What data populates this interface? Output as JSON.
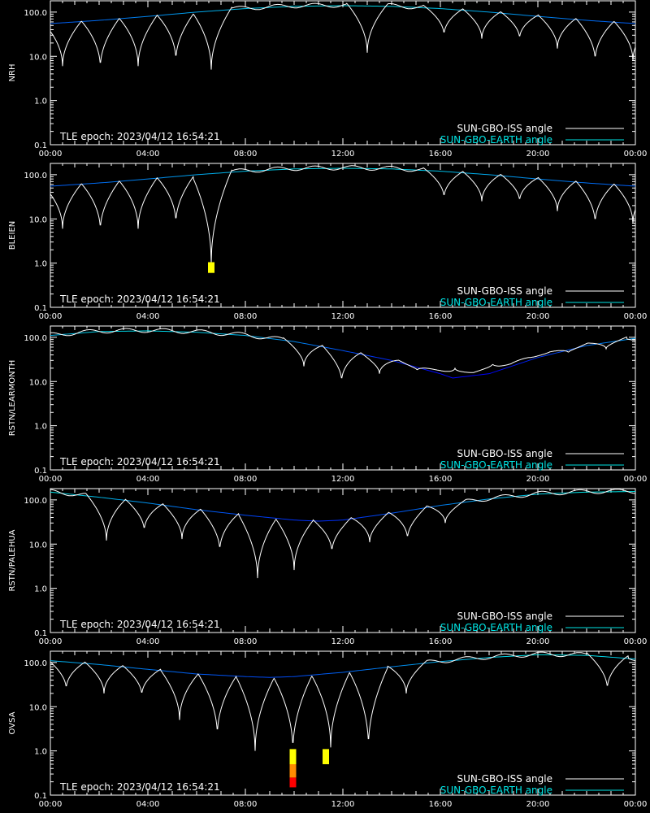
{
  "x_ticks": [
    "00:00",
    "04:00",
    "08:00",
    "12:00",
    "16:00",
    "20:00",
    "00:00"
  ],
  "y_ticks": [
    "100.0",
    "10.0",
    "1.0",
    "0.1"
  ],
  "epoch_label": "TLE epoch: 2023/04/12 16:54:21",
  "legend": [
    {
      "label": "SUN-GBO-ISS angle",
      "color": "#ffffff"
    },
    {
      "label": "SUN-GBO-EARTH angle",
      "color": "#00e5e5"
    }
  ],
  "colors": {
    "background": "#000000",
    "axis": "#ffffff",
    "iss_curve": "#ffffff",
    "earth_curve_low": "#0000ff",
    "earth_curve_high": "#00e5e5",
    "marker_yellow": "#ffff00",
    "marker_orange": "#ff8c00",
    "marker_red": "#ff0000"
  },
  "chart_data": [
    {
      "type": "line",
      "station": "NRH",
      "ylabel": "NRH",
      "yscale": "log",
      "ylim": [
        0.1,
        180
      ],
      "xlim_hours": [
        0,
        24
      ],
      "earth_angle": {
        "x_hours": [
          0,
          2,
          4,
          6,
          8,
          10,
          12,
          14,
          16,
          18,
          20,
          22,
          24
        ],
        "y": [
          55,
          65,
          80,
          100,
          120,
          135,
          140,
          135,
          120,
          100,
          80,
          65,
          55
        ]
      },
      "iss_orbit_period_hours": 1.55,
      "iss_first_minimum_hour": 0.5,
      "iss_minima_hours": [
        0.5,
        2.05,
        3.6,
        5.15,
        6.6,
        13.0,
        16.15,
        17.7,
        19.25,
        20.8,
        22.35,
        23.9
      ],
      "iss_minima_values": [
        6,
        5.5,
        6,
        8,
        5,
        12,
        30,
        25,
        25,
        15,
        8,
        8
      ],
      "markers": []
    },
    {
      "type": "line",
      "station": "BLEIEN",
      "ylabel": "BLEIEN",
      "yscale": "log",
      "ylim": [
        0.1,
        180
      ],
      "xlim_hours": [
        0,
        24
      ],
      "earth_angle": {
        "x_hours": [
          0,
          2,
          4,
          6,
          8,
          10,
          12,
          14,
          16,
          18,
          20,
          22,
          24
        ],
        "y": [
          55,
          65,
          80,
          100,
          120,
          135,
          140,
          135,
          120,
          100,
          80,
          65,
          55
        ]
      },
      "iss_orbit_period_hours": 1.55,
      "iss_first_minimum_hour": 0.5,
      "iss_minima_hours": [
        0.5,
        2.05,
        3.6,
        5.15,
        6.6,
        16.15,
        17.7,
        19.25,
        20.8,
        22.35,
        23.9
      ],
      "iss_minima_values": [
        6,
        5.5,
        6,
        8,
        1.0,
        30,
        25,
        25,
        15,
        8,
        8
      ],
      "markers": [
        {
          "x_hours": 6.6,
          "y_bottom": 0.6,
          "y_top": 1.05,
          "color": "#ffff00"
        }
      ]
    },
    {
      "type": "line",
      "station": "RSTN/LEARMONTH",
      "ylabel": "RSTN/LEARMONTH",
      "yscale": "log",
      "ylim": [
        0.1,
        180
      ],
      "xlim_hours": [
        0,
        24
      ],
      "earth_angle": {
        "x_hours": [
          0,
          2,
          4,
          6,
          8,
          10,
          12,
          14,
          16,
          16.5,
          18,
          20,
          22,
          24
        ],
        "y": [
          110,
          135,
          140,
          130,
          110,
          80,
          50,
          30,
          15,
          12,
          15,
          35,
          65,
          95
        ]
      },
      "iss_orbit_period_hours": 1.55,
      "iss_first_minimum_hour": 0.5,
      "iss_minima_hours": [
        10.4,
        11.95,
        13.5,
        15.05,
        16.6,
        18.15,
        19.7,
        21.25,
        22.8
      ],
      "iss_minima_values": [
        22,
        10,
        15,
        18,
        20,
        25,
        35,
        45,
        55
      ],
      "markers": []
    },
    {
      "type": "line",
      "station": "RSTN/PALEHUA",
      "ylabel": "RSTN/PALEHUA",
      "yscale": "log",
      "ylim": [
        0.1,
        180
      ],
      "xlim_hours": [
        0,
        24
      ],
      "earth_angle": {
        "x_hours": [
          0,
          2,
          4,
          6,
          8,
          10,
          11,
          12,
          14,
          16,
          18,
          20,
          22,
          24
        ],
        "y": [
          150,
          115,
          85,
          60,
          45,
          35,
          33,
          35,
          50,
          75,
          105,
          135,
          150,
          155
        ]
      },
      "iss_orbit_period_hours": 1.55,
      "iss_first_minimum_hour": 0.5,
      "iss_minima_hours": [
        2.3,
        3.85,
        5.4,
        6.95,
        8.5,
        10.0,
        11.55,
        13.1,
        14.65,
        16.2
      ],
      "iss_minima_values": [
        12,
        20,
        13,
        7,
        1.7,
        2.6,
        6.5,
        11,
        13,
        30
      ],
      "markers": []
    },
    {
      "type": "line",
      "station": "OVSA",
      "ylabel": "OVSA",
      "yscale": "log",
      "ylim": [
        0.1,
        180
      ],
      "xlim_hours": [
        0,
        24
      ],
      "earth_angle": {
        "x_hours": [
          0,
          2,
          4,
          6,
          8,
          9,
          10,
          12,
          14,
          16,
          18,
          20,
          22,
          24
        ],
        "y": [
          110,
          90,
          70,
          55,
          48,
          46,
          48,
          60,
          80,
          105,
          130,
          150,
          145,
          120
        ]
      },
      "iss_orbit_period_hours": 1.55,
      "iss_first_minimum_hour": 0.5,
      "iss_minima_hours": [
        0.65,
        2.2,
        3.75,
        5.3,
        6.85,
        8.4,
        9.95,
        11.5,
        13.05,
        14.6,
        22.85
      ],
      "iss_minima_values": [
        25,
        20,
        18,
        5,
        2.2,
        1.0,
        1.0,
        1.2,
        1.2,
        20,
        25
      ],
      "markers": [
        {
          "x_hours": 9.95,
          "y_bottom": 0.15,
          "y_top": 0.25,
          "color": "#ff0000"
        },
        {
          "x_hours": 9.95,
          "y_bottom": 0.25,
          "y_top": 0.5,
          "color": "#ff8c00"
        },
        {
          "x_hours": 9.95,
          "y_bottom": 0.5,
          "y_top": 1.1,
          "color": "#ffff00"
        },
        {
          "x_hours": 11.3,
          "y_bottom": 0.5,
          "y_top": 1.1,
          "color": "#ffff00"
        }
      ]
    }
  ]
}
